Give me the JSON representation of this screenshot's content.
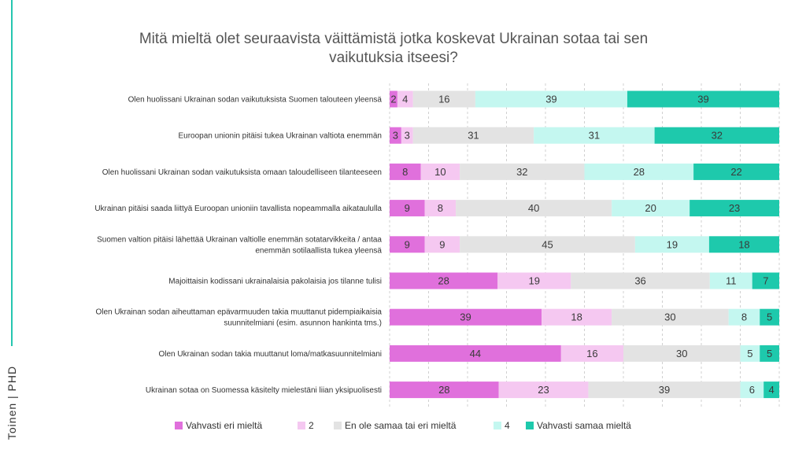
{
  "brand": {
    "logo_text": "Toinen | PHD",
    "accent_color": "#26c6b0"
  },
  "chart_data": {
    "type": "bar",
    "orientation": "horizontal",
    "stacked": true,
    "title": "Mitä mieltä olet seuraavista väittämistä jotka koskevat Ukrainan sotaa tai sen vaikutuksia itseesi?",
    "categories": [
      "Olen huolissani Ukrainan sodan vaikutuksista Suomen talouteen yleensä",
      "Euroopan unionin pitäisi tukea Ukrainan valtiota enemmän",
      "Olen huolissani Ukrainan sodan vaikutuksista omaan taloudelliseen tilanteeseen",
      "Ukrainan pitäisi saada liittyä Euroopan unioniin tavallista nopeammalla aikataululla",
      "Suomen valtion pitäisi lähettää Ukrainan valtiolle enemmän sotatarvikkeita / antaa enemmän sotilaallista tukea yleensä",
      "Majoittaisin kodissani ukrainalaisia pakolaisia jos tilanne tulisi",
      "Olen Ukrainan sodan aiheuttaman epävarmuuden takia muuttanut pidempiaikaisia suunnitelmiani (esim. asunnon hankinta tms.)",
      "Olen Ukrainan sodan takia muuttanut loma/matkasuunnitelmiani",
      "Ukrainan sotaa on Suomessa käsitelty mielestäni liian yksipuolisesti"
    ],
    "category_lines": [
      [
        "Olen huolissani Ukrainan sodan vaikutuksista Suomen talouteen yleensä"
      ],
      [
        "Euroopan unionin pitäisi tukea Ukrainan valtiota enemmän"
      ],
      [
        "Olen huolissani Ukrainan sodan vaikutuksista omaan taloudelliseen tilanteeseen"
      ],
      [
        "Ukrainan pitäisi saada liittyä Euroopan unioniin tavallista nopeammalla aikataululla"
      ],
      [
        "Suomen valtion pitäisi lähettää Ukrainan valtiolle enemmän sotatarvikkeita / antaa",
        "enemmän sotilaallista tukea yleensä"
      ],
      [
        "Majoittaisin kodissani ukrainalaisia pakolaisia jos tilanne tulisi"
      ],
      [
        "Olen Ukrainan sodan aiheuttaman epävarmuuden takia muuttanut pidempiaikaisia",
        "suunnitelmiani (esim. asunnon hankinta tms.)"
      ],
      [
        "Olen Ukrainan sodan takia muuttanut loma/matkasuunnitelmiani"
      ],
      [
        "Ukrainan sotaa on Suomessa käsitelty mielestäni liian yksipuolisesti"
      ]
    ],
    "series": [
      {
        "name": "Vahvasti eri mieltä",
        "color": "#e070dc",
        "values": [
          2,
          3,
          8,
          9,
          9,
          28,
          39,
          44,
          28
        ]
      },
      {
        "name": "2",
        "color": "#f5c8f1",
        "values": [
          4,
          3,
          10,
          8,
          9,
          19,
          18,
          16,
          23
        ]
      },
      {
        "name": "En ole samaa tai eri mieltä",
        "color": "#e3e3e3",
        "values": [
          16,
          31,
          32,
          40,
          45,
          36,
          30,
          30,
          39
        ]
      },
      {
        "name": "4",
        "color": "#c4f7f0",
        "values": [
          39,
          31,
          28,
          20,
          19,
          11,
          8,
          5,
          6
        ]
      },
      {
        "name": "Vahvasti samaa mieltä",
        "color": "#1ec9ac",
        "values": [
          39,
          32,
          22,
          23,
          18,
          7,
          5,
          5,
          4
        ]
      }
    ],
    "xlim": [
      0,
      100
    ],
    "grid": true,
    "legend_position": "bottom"
  }
}
